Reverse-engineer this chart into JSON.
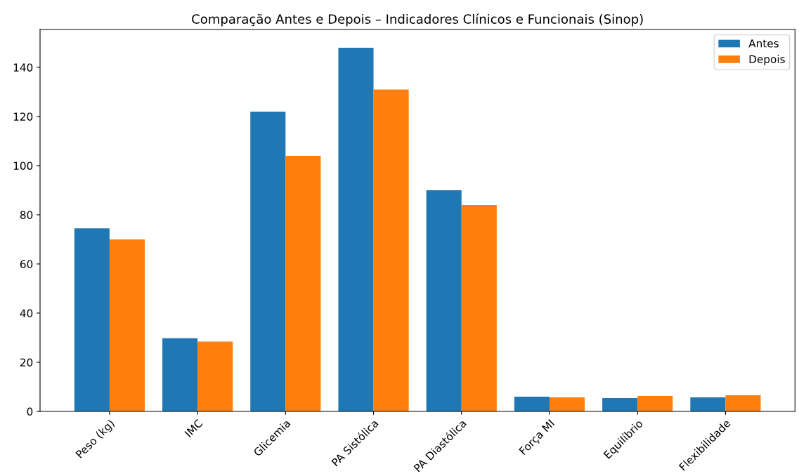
{
  "chart_data": {
    "type": "bar",
    "title": "Comparação Antes e Depois – Indicadores Clínicos e Funcionais (Sinop)",
    "categories": [
      "Peso (kg)",
      "IMC",
      "Glicemia",
      "PA Sistólica",
      "PA Diastólica",
      "Força MI",
      "Equilíbrio",
      "Flexibilidade"
    ],
    "series": [
      {
        "name": "Antes",
        "color": "#1f77b4",
        "values": [
          74.5,
          29.8,
          122,
          148,
          90,
          6.0,
          5.4,
          5.7
        ]
      },
      {
        "name": "Depois",
        "color": "#ff7f0e",
        "values": [
          70,
          28.4,
          104,
          131,
          84,
          5.7,
          6.3,
          6.6
        ]
      }
    ],
    "ylim": [
      0,
      155.4
    ],
    "yticks": [
      0,
      20,
      40,
      60,
      80,
      100,
      120,
      140
    ],
    "legend": "top right",
    "grid": false
  }
}
